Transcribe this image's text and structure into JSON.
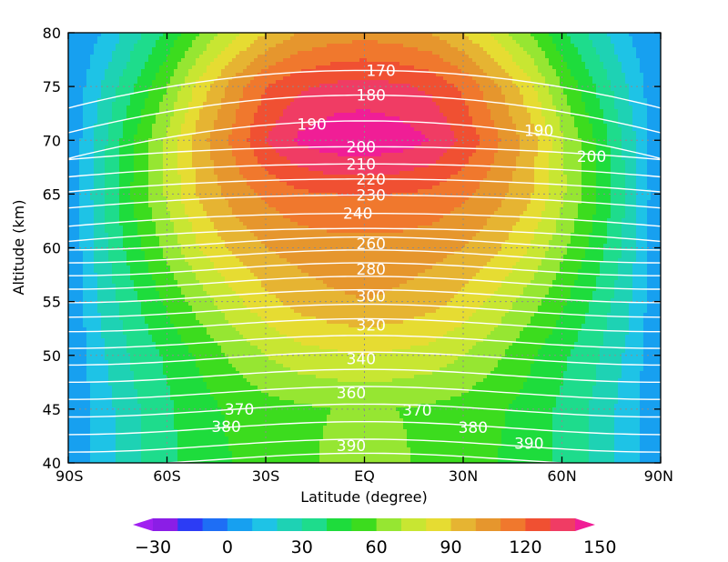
{
  "chart_data": {
    "type": "heatmap",
    "xlabel": "Latitude (degree)",
    "ylabel": "Altitude (km)",
    "xlim": [
      -90,
      90
    ],
    "ylim": [
      40,
      80
    ],
    "x_ticks": [
      -90,
      -60,
      -30,
      0,
      30,
      60,
      90
    ],
    "x_tick_labels": [
      "90S",
      "60S",
      "30S",
      "EQ",
      "30N",
      "60N",
      "90N"
    ],
    "y_ticks": [
      40,
      45,
      50,
      55,
      60,
      65,
      70,
      75,
      80
    ],
    "y_tick_labels": [
      "40",
      "45",
      "50",
      "55",
      "60",
      "65",
      "70",
      "75",
      "80"
    ],
    "grid": true,
    "shaded_field": {
      "levels": [
        -40,
        -30,
        -20,
        -10,
        0,
        10,
        20,
        30,
        40,
        50,
        60,
        70,
        80,
        90,
        100,
        110,
        120,
        130,
        140,
        150
      ],
      "colors": [
        "#a020f0",
        "#8b1ee6",
        "#2c3cf5",
        "#1e6ef5",
        "#17a0f0",
        "#1ec3e6",
        "#1ed2b4",
        "#1edc8c",
        "#1edc3c",
        "#3cdc1e",
        "#96e632",
        "#c8e632",
        "#e6dc32",
        "#e6b432",
        "#e6962d",
        "#f0782d",
        "#f05032",
        "#f03c64",
        "#f01e96"
      ],
      "colorbar_ticks": [
        -30,
        0,
        30,
        60,
        90,
        120,
        150
      ],
      "colorbar_tick_labels": [
        "−30",
        "0",
        "30",
        "60",
        "90",
        "120",
        "150"
      ],
      "max": 150,
      "max_location": {
        "lat": 0,
        "alt": 72
      },
      "approx_grid": {
        "lat": [
          -90,
          -80,
          -70,
          -60,
          -50,
          -40,
          -30,
          -20,
          -10,
          0,
          10,
          20,
          30,
          40,
          50,
          60,
          70,
          80,
          90
        ],
        "alt": [
          40,
          45,
          50,
          55,
          60,
          65,
          70,
          75,
          80
        ],
        "values_by_alt": [
          [
            0,
            15,
            28,
            38,
            45,
            50,
            53,
            57,
            62,
            62,
            62,
            57,
            53,
            50,
            45,
            38,
            28,
            15,
            0
          ],
          [
            0,
            15,
            28,
            38,
            46,
            52,
            56,
            58,
            60,
            61,
            60,
            58,
            56,
            52,
            46,
            38,
            28,
            15,
            0
          ],
          [
            0,
            18,
            32,
            42,
            52,
            62,
            70,
            76,
            78,
            80,
            78,
            76,
            70,
            62,
            52,
            42,
            32,
            18,
            0
          ],
          [
            0,
            22,
            38,
            52,
            65,
            77,
            87,
            94,
            98,
            100,
            98,
            94,
            87,
            77,
            65,
            52,
            38,
            22,
            0
          ],
          [
            0,
            26,
            46,
            63,
            80,
            92,
            100,
            104,
            106,
            106,
            106,
            104,
            100,
            92,
            80,
            63,
            46,
            26,
            0
          ],
          [
            0,
            28,
            52,
            72,
            92,
            104,
            112,
            118,
            120,
            121,
            120,
            118,
            112,
            104,
            92,
            72,
            52,
            28,
            0
          ],
          [
            0,
            26,
            50,
            72,
            96,
            112,
            130,
            142,
            147,
            148,
            146,
            140,
            128,
            112,
            96,
            72,
            50,
            26,
            0
          ],
          [
            0,
            20,
            40,
            60,
            84,
            104,
            120,
            128,
            132,
            134,
            132,
            128,
            118,
            102,
            84,
            60,
            40,
            20,
            0
          ],
          [
            0,
            10,
            26,
            42,
            60,
            76,
            90,
            100,
            104,
            106,
            104,
            100,
            90,
            76,
            60,
            42,
            26,
            10,
            0
          ]
        ]
      }
    },
    "contours": {
      "color": "#ffffff",
      "interval": 10,
      "labels": [
        {
          "text": "170",
          "lat": 5,
          "alt": 76.5
        },
        {
          "text": "180",
          "lat": 2,
          "alt": 74.2
        },
        {
          "text": "190",
          "lat": -16,
          "alt": 71.5
        },
        {
          "text": "190",
          "lat": 53,
          "alt": 70.9
        },
        {
          "text": "200",
          "lat": -1,
          "alt": 69.4
        },
        {
          "text": "200",
          "lat": 69,
          "alt": 68.5
        },
        {
          "text": "210",
          "lat": -1,
          "alt": 67.8
        },
        {
          "text": "220",
          "lat": 2,
          "alt": 66.4
        },
        {
          "text": "230",
          "lat": 2,
          "alt": 64.9
        },
        {
          "text": "240",
          "lat": -2,
          "alt": 63.2
        },
        {
          "text": "260",
          "lat": 2,
          "alt": 60.4
        },
        {
          "text": "280",
          "lat": 2,
          "alt": 58.0
        },
        {
          "text": "300",
          "lat": 2,
          "alt": 55.5
        },
        {
          "text": "320",
          "lat": 2,
          "alt": 52.8
        },
        {
          "text": "340",
          "lat": -1,
          "alt": 49.7
        },
        {
          "text": "360",
          "lat": -4,
          "alt": 46.5
        },
        {
          "text": "370",
          "lat": -38,
          "alt": 45.0
        },
        {
          "text": "370",
          "lat": 16,
          "alt": 44.9
        },
        {
          "text": "380",
          "lat": -42,
          "alt": 43.4
        },
        {
          "text": "380",
          "lat": 33,
          "alt": 43.3
        },
        {
          "text": "390",
          "lat": -4,
          "alt": 41.6
        },
        {
          "text": "390",
          "lat": 50,
          "alt": 41.8
        }
      ]
    }
  }
}
